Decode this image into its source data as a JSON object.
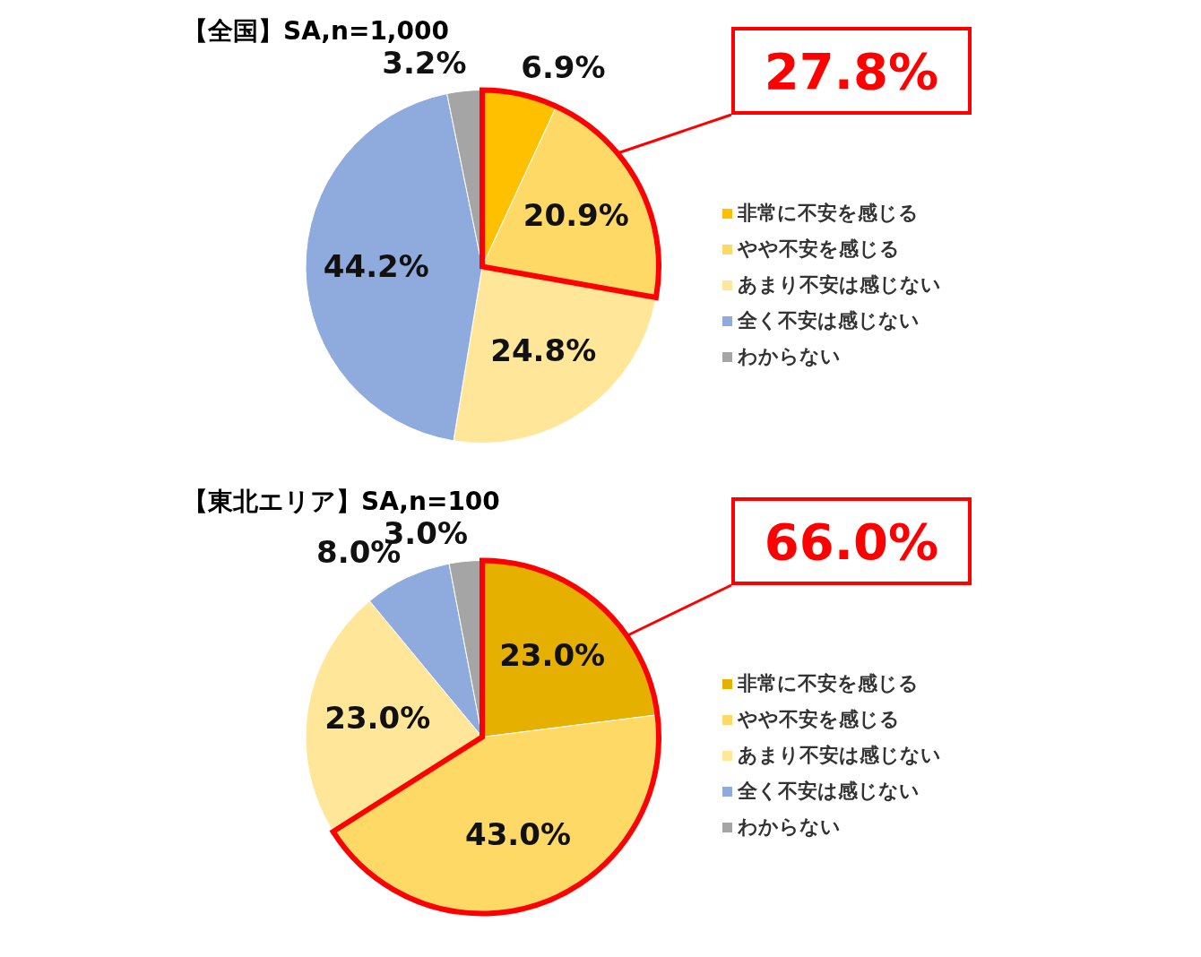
{
  "chart_data": [
    {
      "type": "pie",
      "title": "【全国】SA,n=1,000",
      "categories": [
        "非常に不安を感じる",
        "やや不安を感じる",
        "あまり不安は感じない",
        "全く不安は感じない",
        "わからない"
      ],
      "values": [
        6.9,
        20.9,
        24.8,
        44.2,
        3.2
      ],
      "value_labels": [
        "6.9%",
        "20.9%",
        "24.8%",
        "44.2%",
        "3.2%"
      ],
      "colors": [
        "#ffc000",
        "#ffd966",
        "#ffe699",
        "#8faadc",
        "#a5a5a5"
      ],
      "legend": "right",
      "annotations": [
        "27.8%"
      ]
    },
    {
      "type": "pie",
      "title": "【東北エリア】SA,n=100",
      "categories": [
        "非常に不安を感じる",
        "やや不安を感じる",
        "あまり不安は感じない",
        "全く不安は感じない",
        "わからない"
      ],
      "values": [
        23.0,
        43.0,
        23.0,
        8.0,
        3.0
      ],
      "value_labels": [
        "23.0%",
        "43.0%",
        "23.0%",
        "8.0%",
        "3.0%"
      ],
      "colors": [
        "#e6b000",
        "#ffd966",
        "#ffe699",
        "#8faadc",
        "#a5a5a5"
      ],
      "legend": "right",
      "annotations": [
        "66.0%"
      ]
    }
  ]
}
